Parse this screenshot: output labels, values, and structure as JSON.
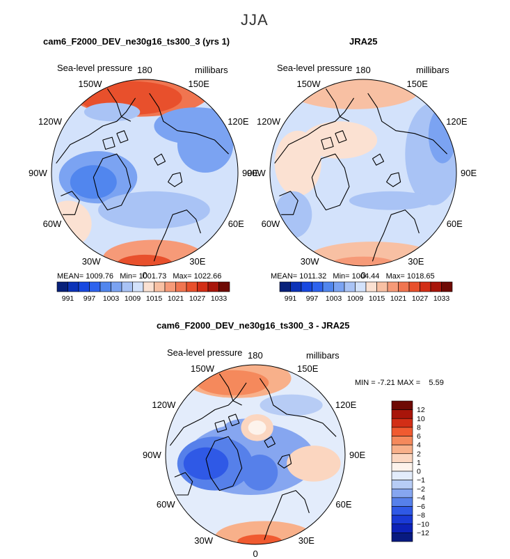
{
  "figure": {
    "title": "JJA"
  },
  "chart_data": [
    {
      "type": "heatmap",
      "title": "cam6_F2000_DEV_ne30g16_ts300_3 (yrs 1)",
      "subtitle": "Sea-level pressure",
      "units": "millibars",
      "projection": "north polar stereographic",
      "lon_labels": [
        "180",
        "150E",
        "120E",
        "90E",
        "60E",
        "30E",
        "0",
        "30W",
        "60W",
        "90W",
        "120W",
        "150W"
      ],
      "stats": {
        "mean_label": "MEAN=",
        "mean": "1009.76",
        "min_label": "Min=",
        "min": "1001.73",
        "max_label": "Max=",
        "max": "1022.66"
      },
      "colorbar": {
        "orientation": "horizontal",
        "levels": [
          991,
          994,
          997,
          1000,
          1003,
          1006,
          1009,
          1012,
          1015,
          1018,
          1021,
          1024,
          1027,
          1030,
          1033
        ],
        "tick_labels": [
          "991",
          "997",
          "1003",
          "1009",
          "1015",
          "1021",
          "1027",
          "1033"
        ],
        "colors": [
          "#08217a",
          "#0c33b8",
          "#1748e0",
          "#2e63ee",
          "#5186ee",
          "#7ba3f2",
          "#a9c3f5",
          "#d3e2fb",
          "#fbe1d2",
          "#f8c0a3",
          "#f69a78",
          "#f07550",
          "#e8502c",
          "#d22e16",
          "#a8150a",
          "#6e0a04"
        ]
      }
    },
    {
      "type": "heatmap",
      "title": "JRA25",
      "subtitle": "Sea-level pressure",
      "units": "millibars",
      "projection": "north polar stereographic",
      "lon_labels": [
        "180",
        "150E",
        "120E",
        "90E",
        "60E",
        "30E",
        "0",
        "30W",
        "60W",
        "90W",
        "120W",
        "150W"
      ],
      "stats": {
        "mean_label": "MEAN=",
        "mean": "1011.32",
        "min_label": "Min=",
        "min": "1004.44",
        "max_label": "Max=",
        "max": "1018.65"
      },
      "colorbar": {
        "orientation": "horizontal",
        "levels": [
          991,
          994,
          997,
          1000,
          1003,
          1006,
          1009,
          1012,
          1015,
          1018,
          1021,
          1024,
          1027,
          1030,
          1033
        ],
        "tick_labels": [
          "991",
          "997",
          "1003",
          "1009",
          "1015",
          "1021",
          "1027",
          "1033"
        ],
        "colors": [
          "#08217a",
          "#0c33b8",
          "#1748e0",
          "#2e63ee",
          "#5186ee",
          "#7ba3f2",
          "#a9c3f5",
          "#d3e2fb",
          "#fbe1d2",
          "#f8c0a3",
          "#f69a78",
          "#f07550",
          "#e8502c",
          "#d22e16",
          "#a8150a",
          "#6e0a04"
        ]
      }
    },
    {
      "type": "heatmap",
      "title": "cam6_F2000_DEV_ne30g16_ts300_3 - JRA25",
      "subtitle": "Sea-level pressure",
      "units": "millibars",
      "projection": "north polar stereographic",
      "lon_labels": [
        "180",
        "150E",
        "120E",
        "90E",
        "60E",
        "30E",
        "0",
        "30W",
        "60W",
        "90W",
        "120W",
        "150W"
      ],
      "stats": {
        "min_label": "MIN =",
        "min": "-7.21",
        "max_label": "MAX =",
        "max": "5.59"
      },
      "colorbar": {
        "orientation": "vertical",
        "levels": [
          -12,
          -10,
          -8,
          -6,
          -4,
          -2,
          -1,
          0,
          1,
          2,
          4,
          6,
          8,
          10,
          12
        ],
        "tick_labels": [
          "12",
          "10",
          "8",
          "6",
          "4",
          "2",
          "1",
          "0",
          "−1",
          "−2",
          "−4",
          "−6",
          "−8",
          "−10",
          "−12"
        ],
        "colors": [
          "#6e0a04",
          "#a8150a",
          "#d22e16",
          "#f05a30",
          "#f5895c",
          "#f8b08a",
          "#fbd6c0",
          "#fdf3ec",
          "#e3ecfb",
          "#b7ccf5",
          "#86a6f0",
          "#5680ea",
          "#2f59e6",
          "#1a3ad6",
          "#0d22b8",
          "#081a80"
        ]
      }
    }
  ],
  "colors": {
    "land_outline": "#000000",
    "background": "#ffffff"
  }
}
